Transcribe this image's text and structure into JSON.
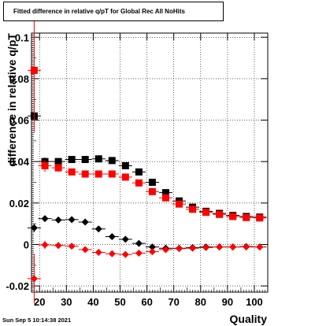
{
  "chart_data": {
    "type": "scatter",
    "title": "Fitted difference in relative q/pT for Global Rec All NoHits",
    "xlabel": "Quality",
    "ylabel": "difference in relative q/pT",
    "xlim": [
      17,
      105
    ],
    "ylim": [
      -0.023,
      0.102
    ],
    "x_ticks": [
      "20",
      "30",
      "40",
      "50",
      "60",
      "70",
      "80",
      "90",
      "100"
    ],
    "y_ticks": [
      "-0.02",
      "0",
      "0.02",
      "0.04",
      "0.06",
      "0.08",
      "0.1"
    ],
    "grid": true,
    "legend": "none",
    "series": [
      {
        "marker": "square",
        "color": "#000000",
        "x": [
          18,
          22,
          27,
          32,
          37,
          42,
          47,
          52,
          57,
          62,
          67,
          72,
          77,
          82,
          87,
          92,
          97,
          102
        ],
        "y": [
          0.062,
          0.04,
          0.04,
          0.041,
          0.041,
          0.0413,
          0.0405,
          0.038,
          0.035,
          0.03,
          0.025,
          0.021,
          0.018,
          0.016,
          0.015,
          0.014,
          0.0135,
          0.0132
        ],
        "yerr": [
          0.002,
          0.002,
          0.001,
          0.001,
          0.001,
          0.001,
          0.001,
          0.001,
          0.001,
          0.001,
          0.001,
          0.001,
          0.001,
          0.001,
          0.001,
          0.001,
          0.001,
          0.001
        ]
      },
      {
        "marker": "square",
        "color": "#ff0000",
        "x": [
          18,
          22,
          27,
          32,
          37,
          42,
          47,
          52,
          57,
          62,
          67,
          72,
          77,
          82,
          87,
          92,
          97,
          102
        ],
        "y": [
          0.084,
          0.038,
          0.037,
          0.035,
          0.034,
          0.034,
          0.034,
          0.0325,
          0.0297,
          0.0255,
          0.0225,
          0.0195,
          0.017,
          0.0155,
          0.0145,
          0.0135,
          0.013,
          0.0128
        ],
        "yerr": [
          0.03,
          0.003,
          0.002,
          0.001,
          0.001,
          0.001,
          0.001,
          0.001,
          0.001,
          0.001,
          0.001,
          0.001,
          0.001,
          0.001,
          0.001,
          0.001,
          0.001,
          0.001
        ]
      },
      {
        "marker": "diamond",
        "color": "#000000",
        "x": [
          18,
          22,
          27,
          32,
          37,
          42,
          47,
          52,
          57,
          62,
          67,
          72,
          77,
          82,
          87,
          92,
          97,
          102
        ],
        "y": [
          0.008,
          0.0125,
          0.0118,
          0.012,
          0.0108,
          0.0075,
          0.0038,
          0.0025,
          0.0005,
          -0.0012,
          -0.0018,
          -0.0018,
          -0.0015,
          -0.0012,
          -0.0012,
          -0.0012,
          -0.001,
          -0.0012
        ],
        "yerr": [
          0.002,
          0.001,
          0.001,
          0.001,
          0.001,
          0.001,
          0.0008,
          0.0008,
          0.0008,
          0.0008,
          0.0008,
          0.0008,
          0.0008,
          0.0008,
          0.0008,
          0.0008,
          0.0008,
          0.0008
        ]
      },
      {
        "marker": "diamond",
        "color": "#ff0000",
        "x": [
          18,
          22,
          27,
          32,
          37,
          42,
          47,
          52,
          57,
          62,
          67,
          72,
          77,
          82,
          87,
          92,
          97,
          102
        ],
        "y": [
          -0.0165,
          -0.0002,
          -0.0005,
          -0.0008,
          -0.0025,
          -0.0038,
          -0.0045,
          -0.0048,
          -0.0042,
          -0.0035,
          -0.0025,
          -0.002,
          -0.0018,
          -0.0015,
          -0.0012,
          -0.0012,
          -0.0012,
          -0.0012
        ],
        "yerr": [
          0.012,
          0.002,
          0.001,
          0.001,
          0.001,
          0.001,
          0.0008,
          0.0008,
          0.0008,
          0.0008,
          0.0008,
          0.0008,
          0.0008,
          0.0008,
          0.0008,
          0.0008,
          0.0008,
          0.0008
        ]
      }
    ]
  },
  "footer": {
    "timestamp": "Sun Sep  5 10:14:38 2021"
  }
}
